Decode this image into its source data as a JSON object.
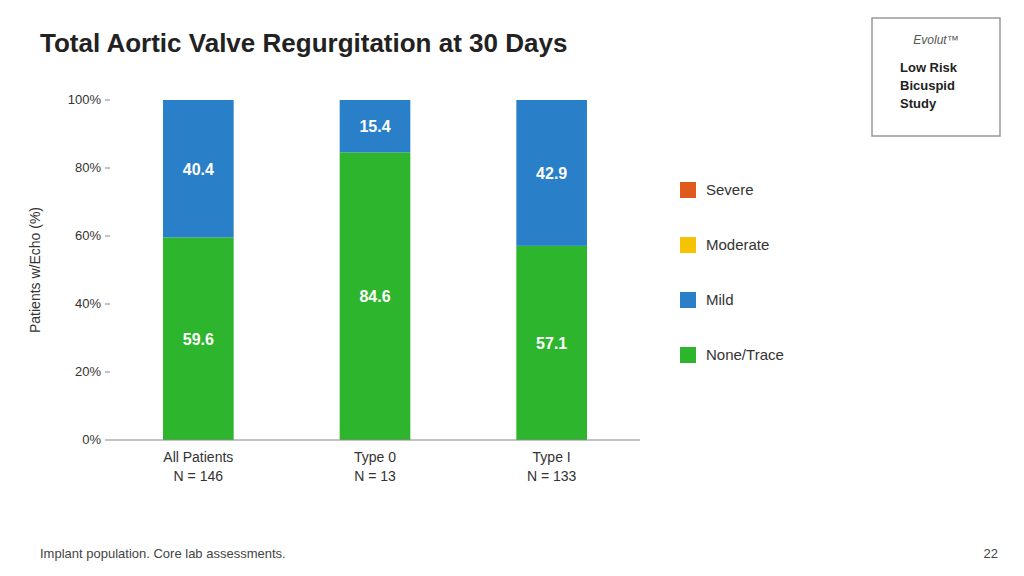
{
  "chart_data": {
    "type": "bar",
    "stacked": true,
    "title": "Total Aortic Valve Regurgitation at 30 Days",
    "y_label": "Patients w/Echo (%)",
    "categories": [
      "All Patients\nN = 146",
      "Type 0\nN = 13",
      "Type I\nN = 133"
    ],
    "series": [
      {
        "name": "None/Trace",
        "color": "#2db52d",
        "values": [
          59.6,
          84.6,
          57.1
        ]
      },
      {
        "name": "Mild",
        "color": "#2980c8",
        "values": [
          40.4,
          15.4,
          42.9
        ]
      },
      {
        "name": "Moderate",
        "color": "#f5c400",
        "values": [
          0.0,
          0.0,
          0.0
        ]
      },
      {
        "name": "Severe",
        "color": "#e05a20",
        "values": [
          0.0,
          0.0,
          0.0
        ]
      }
    ],
    "ylim": [
      0,
      100
    ],
    "yticks": [
      {
        "value": 0,
        "label": "0%"
      },
      {
        "value": 20,
        "label": "20%"
      },
      {
        "value": 40,
        "label": "40%"
      },
      {
        "value": 60,
        "label": "60%"
      },
      {
        "value": 80,
        "label": "80%"
      },
      {
        "value": 100,
        "label": "100%"
      }
    ],
    "grid": false,
    "legend": "right",
    "data_labels": true,
    "annotations": [
      "Evolut™",
      "Low Risk\nBicuspid\nStudy",
      "Implant population. Core lab assessments.",
      "22"
    ]
  }
}
